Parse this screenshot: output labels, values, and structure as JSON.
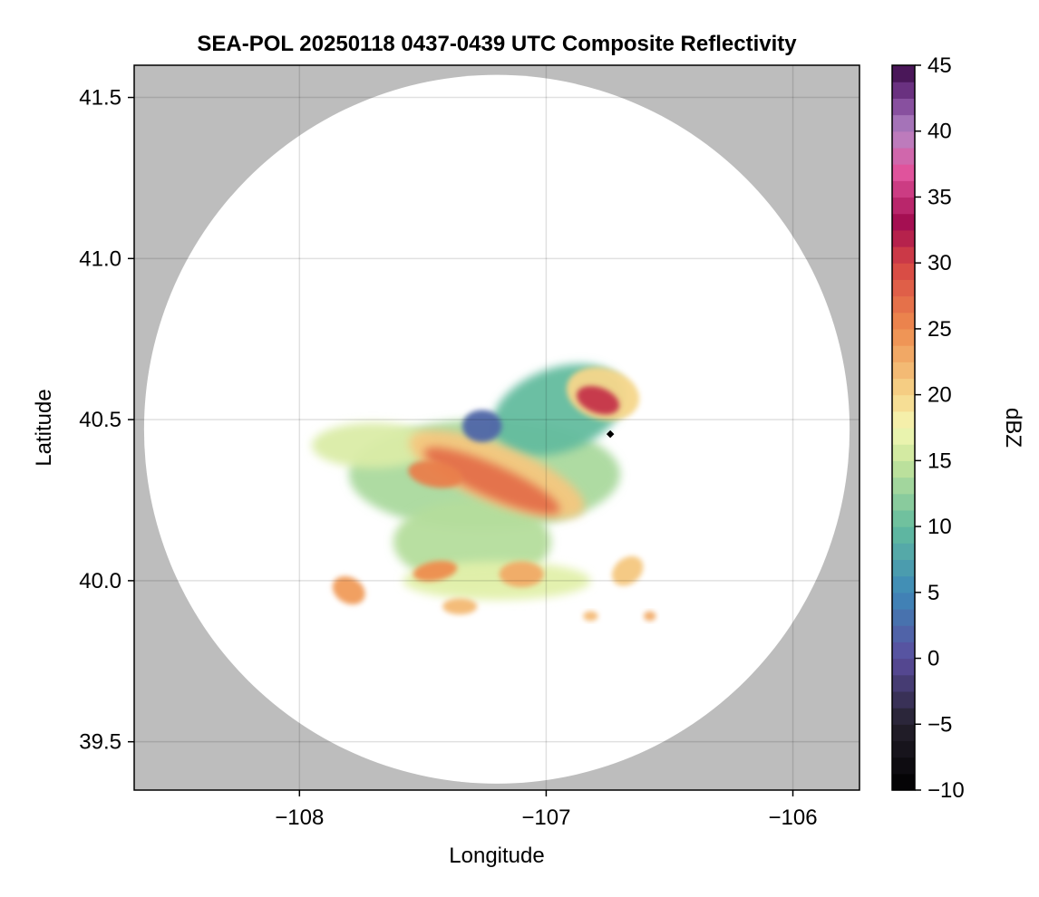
{
  "chart_data": {
    "type": "heatmap",
    "title": "SEA-POL 20250118 0437-0439 UTC Composite Reflectivity",
    "xlabel": "Longitude",
    "ylabel": "Latitude",
    "xlim": [
      -108.67,
      -105.73
    ],
    "ylim": [
      39.35,
      41.6
    ],
    "x_ticks": [
      {
        "value": -108,
        "label": "−108"
      },
      {
        "value": -107,
        "label": "−107"
      },
      {
        "value": -106,
        "label": "−106"
      }
    ],
    "y_ticks": [
      {
        "value": 39.5,
        "label": "39.5"
      },
      {
        "value": 40.0,
        "label": "40.0"
      },
      {
        "value": 40.5,
        "label": "40.5"
      },
      {
        "value": 41.0,
        "label": "41.0"
      },
      {
        "value": 41.5,
        "label": "41.5"
      }
    ],
    "grid": true,
    "background_color": "#bdbdbd",
    "radar_range": {
      "center_lon": -107.2,
      "center_lat": 40.47,
      "radius_lon": 1.43,
      "radius_lat": 1.1
    },
    "radar_site": {
      "lon": -106.74,
      "lat": 40.455
    },
    "colorbar": {
      "label": "dBZ",
      "range": [
        -10,
        45
      ],
      "ticks": [
        {
          "value": -10,
          "label": "−10"
        },
        {
          "value": -5,
          "label": "−5"
        },
        {
          "value": 0,
          "label": "0"
        },
        {
          "value": 5,
          "label": "5"
        },
        {
          "value": 10,
          "label": "10"
        },
        {
          "value": 15,
          "label": "15"
        },
        {
          "value": 20,
          "label": "20"
        },
        {
          "value": 25,
          "label": "25"
        },
        {
          "value": 30,
          "label": "30"
        },
        {
          "value": 35,
          "label": "35"
        },
        {
          "value": 40,
          "label": "40"
        },
        {
          "value": 45,
          "label": "45"
        }
      ],
      "colormap": [
        {
          "value": -10,
          "color": "#000000"
        },
        {
          "value": -5,
          "color": "#24202c"
        },
        {
          "value": 0,
          "color": "#5b4d9e"
        },
        {
          "value": 5,
          "color": "#3d88b8"
        },
        {
          "value": 10,
          "color": "#63bc9e"
        },
        {
          "value": 15,
          "color": "#c8e59c"
        },
        {
          "value": 17.5,
          "color": "#f4f7b4"
        },
        {
          "value": 20,
          "color": "#f6d68a"
        },
        {
          "value": 25,
          "color": "#ee8c4e"
        },
        {
          "value": 30,
          "color": "#d64444"
        },
        {
          "value": 33,
          "color": "#a30d50"
        },
        {
          "value": 37,
          "color": "#e2559e"
        },
        {
          "value": 40,
          "color": "#b385c4"
        },
        {
          "value": 42.5,
          "color": "#7a3e93"
        },
        {
          "value": 45,
          "color": "#3a0a45"
        }
      ]
    },
    "echo_regions": [
      {
        "name": "main-echo-envelope",
        "dbz": 13.5,
        "lon": -107.25,
        "lat": 40.33,
        "rlon": 0.55,
        "rlat": 0.17,
        "rot": 0
      },
      {
        "name": "west-echo-arm",
        "dbz": 16,
        "lon": -107.7,
        "lat": 40.42,
        "rlon": 0.25,
        "rlat": 0.07,
        "rot": 0
      },
      {
        "name": "northeast-echo-arm",
        "dbz": 10,
        "lon": -106.95,
        "lat": 40.53,
        "rlon": 0.28,
        "rlat": 0.13,
        "rot": -20
      },
      {
        "name": "southern-stratiform-area",
        "dbz": 14,
        "lon": -107.3,
        "lat": 40.12,
        "rlon": 0.32,
        "rlat": 0.13,
        "rot": 0
      },
      {
        "name": "southern-echo-fringe",
        "dbz": 16.5,
        "lon": -107.2,
        "lat": 40.0,
        "rlon": 0.38,
        "rlat": 0.06,
        "rot": 0
      },
      {
        "name": "moderate-band",
        "dbz": 21,
        "lon": -107.2,
        "lat": 40.33,
        "rlon": 0.38,
        "rlat": 0.09,
        "rot": 22
      },
      {
        "name": "convective-band-core",
        "dbz": 27,
        "lon": -107.22,
        "lat": 40.31,
        "rlon": 0.3,
        "rlat": 0.05,
        "rot": 24
      },
      {
        "name": "convective-band-west",
        "dbz": 26,
        "lon": -107.45,
        "lat": 40.33,
        "rlon": 0.11,
        "rlat": 0.04,
        "rot": 10
      },
      {
        "name": "northern-weak-echo",
        "dbz": 2,
        "lon": -107.26,
        "lat": 40.48,
        "rlon": 0.08,
        "rlat": 0.05,
        "rot": 0
      },
      {
        "name": "northeast-core-envelope",
        "dbz": 20,
        "lon": -106.77,
        "lat": 40.58,
        "rlon": 0.15,
        "rlat": 0.08,
        "rot": 15
      },
      {
        "name": "northeast-core",
        "dbz": 31,
        "lon": -106.79,
        "lat": 40.56,
        "rlon": 0.09,
        "rlat": 0.04,
        "rot": 20
      },
      {
        "name": "southwest-cell",
        "dbz": 24,
        "lon": -107.8,
        "lat": 39.97,
        "rlon": 0.07,
        "rlat": 0.04,
        "rot": 30
      },
      {
        "name": "south-cell-1",
        "dbz": 25,
        "lon": -107.45,
        "lat": 40.03,
        "rlon": 0.09,
        "rlat": 0.03,
        "rot": -10
      },
      {
        "name": "south-cell-2",
        "dbz": 23,
        "lon": -107.1,
        "lat": 40.02,
        "rlon": 0.09,
        "rlat": 0.04,
        "rot": 0
      },
      {
        "name": "southeast-cell",
        "dbz": 21,
        "lon": -106.67,
        "lat": 40.03,
        "rlon": 0.07,
        "rlat": 0.04,
        "rot": -40
      },
      {
        "name": "southern-fragment",
        "dbz": 22,
        "lon": -107.35,
        "lat": 39.92,
        "rlon": 0.07,
        "rlat": 0.025,
        "rot": 0
      },
      {
        "name": "southeast-fragment-1",
        "dbz": 22,
        "lon": -106.82,
        "lat": 39.89,
        "rlon": 0.03,
        "rlat": 0.015,
        "rot": 0
      },
      {
        "name": "southeast-fragment-2",
        "dbz": 23,
        "lon": -106.58,
        "lat": 39.89,
        "rlon": 0.025,
        "rlat": 0.015,
        "rot": 0
      }
    ]
  }
}
